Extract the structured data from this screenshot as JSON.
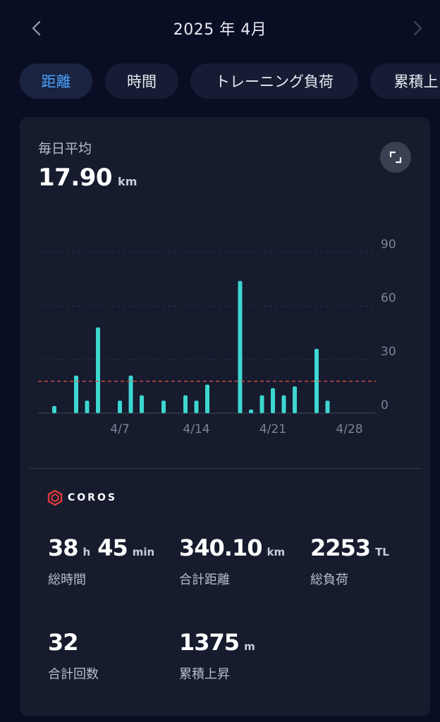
{
  "header": {
    "month_title": "2025 年 4月",
    "prev_icon": "chevron-left-icon",
    "next_icon": "chevron-right-icon"
  },
  "tabs": [
    {
      "label": "距離",
      "active": true
    },
    {
      "label": "時間",
      "active": false
    },
    {
      "label": "トレーニング負荷",
      "active": false
    },
    {
      "label": "累積上",
      "active": false
    }
  ],
  "summary": {
    "avg_label": "毎日平均",
    "avg_value": "17.90",
    "avg_unit": "km",
    "expand_icon": "expand-icon"
  },
  "chart_data": {
    "type": "bar",
    "xlabel": "",
    "ylabel": "",
    "ylim": [
      0,
      90
    ],
    "yticks": [
      "90",
      "60",
      "30",
      "0"
    ],
    "xticks": [
      "4/7",
      "4/14",
      "4/21",
      "4/28"
    ],
    "average_line": 17.9,
    "bar_color": "#3dd6d0",
    "avg_line_color": "#e14b4b",
    "days": [
      1,
      2,
      3,
      4,
      5,
      6,
      7,
      8,
      9,
      10,
      11,
      12,
      13,
      14,
      15,
      16,
      17,
      18,
      19,
      20,
      21,
      22,
      23,
      24,
      25,
      26,
      27,
      28,
      29,
      30
    ],
    "values": [
      4,
      0,
      21,
      7,
      48,
      0,
      7,
      21,
      10,
      0,
      7,
      0,
      10,
      7,
      16,
      0,
      0,
      74,
      2,
      10,
      14,
      10,
      15,
      0,
      36,
      7,
      0,
      0,
      0,
      0
    ]
  },
  "brand": {
    "name": "COROS",
    "color": "#e23b3b"
  },
  "stats": {
    "total_time": {
      "hours": "38",
      "h_unit": "h",
      "minutes": "45",
      "m_unit": "min",
      "label": "総時間"
    },
    "total_distance": {
      "value": "340.10",
      "unit": "km",
      "label": "合計距離"
    },
    "total_load": {
      "value": "2253",
      "unit": "TL",
      "label": "総負荷"
    },
    "count": {
      "value": "32",
      "label": "合計回数"
    },
    "ascent": {
      "value": "1375",
      "unit": "m",
      "label": "累積上昇"
    }
  }
}
